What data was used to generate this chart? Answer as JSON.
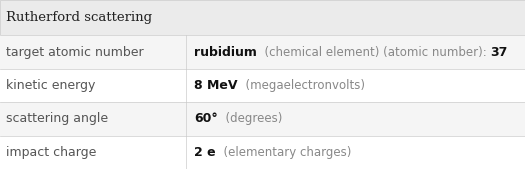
{
  "title": "Rutherford scattering",
  "title_bg": "#ebebeb",
  "row_bg_even": "#f5f5f5",
  "row_bg_odd": "#ffffff",
  "border_color": "#cccccc",
  "rows": [
    {
      "label": "target atomic number",
      "value_parts": [
        {
          "text": "rubidium",
          "bold": true,
          "size": 9.0
        },
        {
          "text": "  (chemical element) (atomic number): ",
          "bold": false,
          "size": 8.5
        },
        {
          "text": "37",
          "bold": true,
          "size": 9.0
        }
      ]
    },
    {
      "label": "kinetic energy",
      "value_parts": [
        {
          "text": "8 MeV",
          "bold": true,
          "size": 9.0
        },
        {
          "text": "  (megaelectronvolts)",
          "bold": false,
          "size": 8.5
        }
      ]
    },
    {
      "label": "scattering angle",
      "value_parts": [
        {
          "text": "60°",
          "bold": true,
          "size": 9.0
        },
        {
          "text": "  (degrees)",
          "bold": false,
          "size": 8.5
        }
      ]
    },
    {
      "label": "impact charge",
      "value_parts": [
        {
          "text": "2 e",
          "bold": true,
          "size": 9.0
        },
        {
          "text": "  (elementary charges)",
          "bold": false,
          "size": 8.5
        }
      ]
    }
  ],
  "label_color": "#555555",
  "value_bold_color": "#111111",
  "value_light_color": "#888888",
  "title_fontsize": 9.5,
  "label_fontsize": 9.0,
  "figsize": [
    5.25,
    1.69
  ],
  "dpi": 100,
  "col_split": 0.355
}
